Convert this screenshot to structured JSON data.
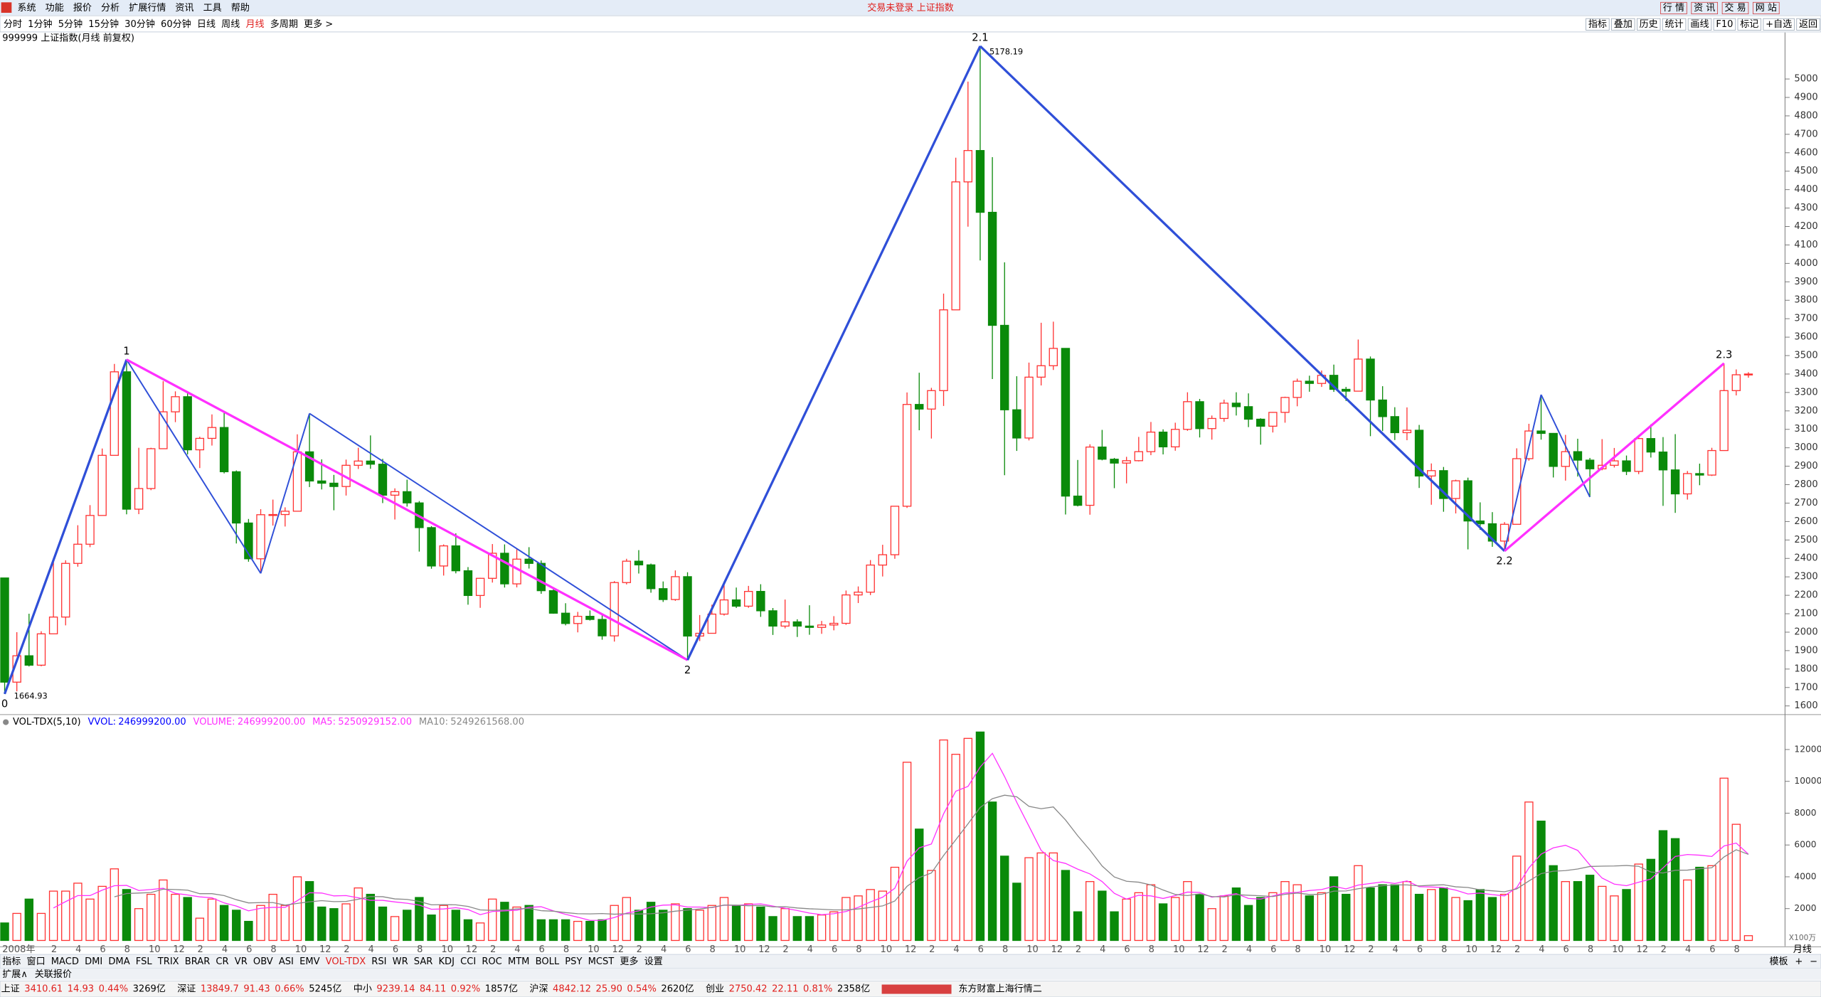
{
  "menu": [
    "系统",
    "功能",
    "报价",
    "分析",
    "扩展行情",
    "资讯",
    "工具",
    "帮助"
  ],
  "title": "交易未登录 上证指数",
  "top_buttons": [
    "行 情",
    "资 讯",
    "交 易",
    "网 站"
  ],
  "periods": [
    "分时",
    "1分钟",
    "5分钟",
    "15分钟",
    "30分钟",
    "60分钟",
    "日线",
    "周线",
    "月线",
    "多周期",
    "更多 >"
  ],
  "active_period_index": 8,
  "tools": [
    "指标",
    "叠加",
    "历史",
    "统计",
    "画线",
    "F10",
    "标记",
    "+自选",
    "返回"
  ],
  "chart_title": "999999 上证指数(月线 前复权)",
  "chart_data": {
    "type": "candlestick",
    "up_color": "#ff3232",
    "down_color": "#0a8a0a",
    "ylim": [
      1556,
      5252
    ],
    "yticks": [
      1600,
      1700,
      1800,
      1900,
      2000,
      2100,
      2200,
      2300,
      2400,
      2500,
      2600,
      2700,
      2800,
      2900,
      3000,
      3100,
      3200,
      3300,
      3400,
      3500,
      3600,
      3700,
      3800,
      3900,
      4000,
      4100,
      4200,
      4300,
      4400,
      4500,
      4600,
      4700,
      4800,
      4900,
      5000
    ],
    "categories": [
      "2008年",
      null,
      null,
      null,
      "2",
      null,
      "4",
      null,
      "6",
      null,
      "8",
      null,
      "10",
      null,
      "12",
      null,
      "2",
      null,
      "4",
      null,
      "6",
      null,
      "8",
      null,
      "10",
      null,
      "12",
      null,
      "2",
      null,
      "4",
      null,
      "6",
      null,
      "8",
      null,
      "10",
      null,
      "12",
      null,
      "2",
      null,
      "4",
      null,
      "6",
      null,
      "8",
      null,
      "10",
      null,
      "12",
      null,
      "2",
      null,
      "4",
      null,
      "6",
      null,
      "8",
      null,
      "10",
      null,
      "12",
      null,
      "2",
      null,
      "4",
      null,
      "6",
      null,
      "8",
      null,
      "10",
      null,
      "12",
      null,
      "2",
      null,
      "4",
      null,
      "6",
      null,
      "8",
      null,
      "10",
      null,
      "12",
      null,
      "2",
      null,
      "4",
      null,
      "6",
      null,
      "8",
      null,
      "10",
      null,
      "12",
      null,
      "2",
      null,
      "4",
      null,
      "6",
      null,
      "8",
      null,
      "10",
      null,
      "12",
      null,
      "2",
      null,
      "4",
      null,
      "6",
      null,
      "8",
      null,
      "10",
      null,
      "12",
      null,
      "2",
      null,
      "4",
      null,
      "6",
      null,
      "8",
      null,
      "10",
      null,
      "12",
      null,
      "2",
      null,
      "4",
      null,
      "6",
      null,
      "8",
      null
    ],
    "ohlc": [
      [
        2294,
        2294,
        1664.93,
        1729
      ],
      [
        1729,
        2000,
        1679,
        1872
      ],
      [
        1872,
        2100,
        1814,
        1821
      ],
      [
        1821,
        2005,
        1815,
        1991
      ],
      [
        1991,
        2403,
        1991,
        2082
      ],
      [
        2082,
        2390,
        2037,
        2373
      ],
      [
        2373,
        2580,
        2355,
        2477
      ],
      [
        2477,
        2689,
        2461,
        2633
      ],
      [
        2633,
        2996,
        2633,
        2959
      ],
      [
        2959,
        3455,
        2959,
        3412
      ],
      [
        3412,
        3478,
        2639,
        2667
      ],
      [
        2667,
        3000,
        2640,
        2779
      ],
      [
        2779,
        3000,
        2770,
        2995
      ],
      [
        2995,
        3361,
        2995,
        3195
      ],
      [
        3195,
        3306,
        3139,
        3277
      ],
      [
        3277,
        3307,
        2964,
        2989
      ],
      [
        2989,
        3060,
        2890,
        3051
      ],
      [
        3051,
        3181,
        3012,
        3110
      ],
      [
        3110,
        3190,
        2861,
        2870
      ],
      [
        2870,
        2877,
        2481,
        2592
      ],
      [
        2592,
        2614,
        2382,
        2398
      ],
      [
        2398,
        2667,
        2319,
        2637
      ],
      [
        2637,
        2719,
        2578,
        2638
      ],
      [
        2638,
        2677,
        2573,
        2656
      ],
      [
        2656,
        3073,
        2656,
        2978
      ],
      [
        2978,
        3186,
        2787,
        2820
      ],
      [
        2820,
        2937,
        2774,
        2808
      ],
      [
        2808,
        2853,
        2661,
        2790
      ],
      [
        2790,
        2936,
        2741,
        2905
      ],
      [
        2905,
        3000,
        2885,
        2928
      ],
      [
        2928,
        3067,
        2886,
        2911
      ],
      [
        2911,
        2940,
        2700,
        2743
      ],
      [
        2743,
        2780,
        2611,
        2762
      ],
      [
        2762,
        2827,
        2681,
        2701
      ],
      [
        2701,
        2711,
        2437,
        2567
      ],
      [
        2567,
        2575,
        2344,
        2359
      ],
      [
        2359,
        2476,
        2307,
        2468
      ],
      [
        2468,
        2536,
        2319,
        2333
      ],
      [
        2333,
        2353,
        2149,
        2199
      ],
      [
        2199,
        2295,
        2132,
        2292
      ],
      [
        2292,
        2478,
        2269,
        2428
      ],
      [
        2428,
        2476,
        2242,
        2262
      ],
      [
        2262,
        2454,
        2243,
        2396
      ],
      [
        2396,
        2461,
        2345,
        2373
      ],
      [
        2373,
        2389,
        2208,
        2225
      ],
      [
        2225,
        2239,
        2100,
        2103
      ],
      [
        2103,
        2157,
        2037,
        2047
      ],
      [
        2047,
        2110,
        1999,
        2086
      ],
      [
        2086,
        2118,
        2063,
        2069
      ],
      [
        2069,
        2092,
        1959,
        1980
      ],
      [
        1980,
        2277,
        1949,
        2269
      ],
      [
        2269,
        2398,
        2259,
        2385
      ],
      [
        2385,
        2445,
        2318,
        2365
      ],
      [
        2365,
        2372,
        2214,
        2236
      ],
      [
        2236,
        2275,
        2164,
        2177
      ],
      [
        2177,
        2335,
        2170,
        2301
      ],
      [
        2301,
        2325,
        1849,
        1979
      ],
      [
        1979,
        2093,
        1952,
        1994
      ],
      [
        1994,
        2149,
        1994,
        2098
      ],
      [
        2098,
        2270,
        2090,
        2175
      ],
      [
        2175,
        2242,
        2131,
        2141
      ],
      [
        2141,
        2251,
        2132,
        2221
      ],
      [
        2221,
        2260,
        2083,
        2116
      ],
      [
        2116,
        2131,
        1985,
        2033
      ],
      [
        2033,
        2177,
        2021,
        2056
      ],
      [
        2056,
        2070,
        1974,
        2033
      ],
      [
        2033,
        2146,
        1986,
        2026
      ],
      [
        2026,
        2061,
        1991,
        2039
      ],
      [
        2039,
        2087,
        2010,
        2048
      ],
      [
        2048,
        2226,
        2040,
        2202
      ],
      [
        2202,
        2248,
        2158,
        2217
      ],
      [
        2217,
        2391,
        2201,
        2364
      ],
      [
        2364,
        2474,
        2302,
        2420
      ],
      [
        2420,
        2684,
        2398,
        2683
      ],
      [
        2683,
        3300,
        2674,
        3235
      ],
      [
        3235,
        3407,
        3095,
        3210
      ],
      [
        3210,
        3325,
        3050,
        3310
      ],
      [
        3310,
        3836,
        3227,
        3748
      ],
      [
        3748,
        4573,
        3748,
        4442
      ],
      [
        4442,
        4986,
        4199,
        4612
      ],
      [
        4612,
        5178.19,
        4016,
        4277
      ],
      [
        4277,
        4576,
        3373,
        3664
      ],
      [
        3664,
        4006,
        2851,
        3206
      ],
      [
        3206,
        3388,
        2983,
        3053
      ],
      [
        3053,
        3462,
        3040,
        3383
      ],
      [
        3383,
        3678,
        3338,
        3445
      ],
      [
        3445,
        3684,
        3422,
        3539
      ],
      [
        3539,
        3539,
        2638,
        2738
      ],
      [
        2738,
        2934,
        2682,
        2688
      ],
      [
        2688,
        3019,
        2637,
        3004
      ],
      [
        3004,
        3097,
        2932,
        2938
      ],
      [
        2938,
        2945,
        2781,
        2917
      ],
      [
        2917,
        2951,
        2807,
        2930
      ],
      [
        2930,
        3059,
        2926,
        2979
      ],
      [
        2979,
        3140,
        2960,
        3085
      ],
      [
        3085,
        3100,
        2964,
        3005
      ],
      [
        3005,
        3136,
        2984,
        3100
      ],
      [
        3100,
        3301,
        3092,
        3250
      ],
      [
        3250,
        3265,
        3056,
        3104
      ],
      [
        3104,
        3175,
        3044,
        3159
      ],
      [
        3159,
        3261,
        3141,
        3242
      ],
      [
        3242,
        3301,
        3175,
        3223
      ],
      [
        3223,
        3295,
        3112,
        3155
      ],
      [
        3155,
        3160,
        3017,
        3117
      ],
      [
        3117,
        3194,
        3083,
        3192
      ],
      [
        3192,
        3277,
        3136,
        3273
      ],
      [
        3273,
        3375,
        3225,
        3361
      ],
      [
        3361,
        3391,
        3304,
        3349
      ],
      [
        3349,
        3419,
        3330,
        3393
      ],
      [
        3393,
        3451,
        3303,
        3317
      ],
      [
        3317,
        3330,
        3254,
        3307
      ],
      [
        3307,
        3587,
        3307,
        3481
      ],
      [
        3481,
        3495,
        3063,
        3259
      ],
      [
        3259,
        3334,
        3091,
        3169
      ],
      [
        3169,
        3220,
        3042,
        3082
      ],
      [
        3082,
        3219,
        3041,
        3095
      ],
      [
        3095,
        3124,
        2782,
        2847
      ],
      [
        2847,
        2915,
        2691,
        2876
      ],
      [
        2876,
        2896,
        2653,
        2725
      ],
      [
        2725,
        2827,
        2644,
        2821
      ],
      [
        2821,
        2838,
        2449,
        2603
      ],
      [
        2603,
        2704,
        2555,
        2588
      ],
      [
        2588,
        2651,
        2463,
        2494
      ],
      [
        2494,
        2597,
        2440,
        2585
      ],
      [
        2585,
        2997,
        2584,
        2941
      ],
      [
        2941,
        3130,
        2930,
        3091
      ],
      [
        3091,
        3288,
        3044,
        3078
      ],
      [
        3078,
        3080,
        2839,
        2899
      ],
      [
        2899,
        3070,
        2822,
        2979
      ],
      [
        2979,
        3049,
        2844,
        2933
      ],
      [
        2933,
        2945,
        2733,
        2886
      ],
      [
        2886,
        3047,
        2878,
        2905
      ],
      [
        2905,
        2999,
        2893,
        2929
      ],
      [
        2929,
        2958,
        2852,
        2872
      ],
      [
        2872,
        3065,
        2857,
        3050
      ],
      [
        3050,
        3127,
        2947,
        2977
      ],
      [
        2977,
        3058,
        2685,
        2880
      ],
      [
        2880,
        3074,
        2647,
        2750
      ],
      [
        2750,
        2874,
        2719,
        2860
      ],
      [
        2860,
        2914,
        2797,
        2852
      ],
      [
        2852,
        3000,
        2847,
        2985
      ],
      [
        2985,
        3458,
        2985,
        3310
      ],
      [
        3310,
        3425,
        3284,
        3396
      ],
      [
        3396,
        3410,
        3380,
        3400
      ]
    ],
    "waves": [
      {
        "label": "0",
        "index": 0,
        "at": "low"
      },
      {
        "label": "1",
        "index": 10,
        "at": "high"
      },
      {
        "label": "2",
        "index": 56,
        "at": "low"
      },
      {
        "label": "2.1",
        "index": 80,
        "at": "high"
      },
      {
        "label": "2.2",
        "index": 123,
        "at": "low"
      },
      {
        "label": "2.3",
        "index": 141,
        "at": "high"
      }
    ],
    "wave_colors": [
      "#2f4fd8",
      "#ff30ff",
      "#2f4fd8",
      "#2f4fd8",
      "#ff30ff"
    ],
    "extra_lines": [
      [
        10,
        "high",
        21,
        "low"
      ],
      [
        21,
        "low",
        25,
        "high"
      ],
      [
        25,
        "high",
        56,
        "low"
      ],
      [
        123,
        "low",
        126,
        "high"
      ],
      [
        126,
        "high",
        130,
        "low"
      ]
    ],
    "extra_color": "#2f4fd8",
    "period_label": "月线",
    "volume": {
      "type": "bar",
      "ylim": [
        0,
        13500
      ],
      "yticks": [
        2000,
        4000,
        6000,
        8000,
        10000,
        12000
      ],
      "unit": "X100万",
      "ma_colors": [
        "#ff30ff",
        "#888888"
      ],
      "values": [
        1100,
        1700,
        2600,
        1700,
        3100,
        3100,
        3600,
        2600,
        3400,
        4500,
        3200,
        2000,
        2900,
        3800,
        2900,
        2700,
        1400,
        2600,
        2200,
        1900,
        1200,
        2200,
        2900,
        2200,
        4000,
        3700,
        2100,
        2000,
        2300,
        3300,
        2900,
        2100,
        1500,
        1900,
        2700,
        1600,
        2200,
        1900,
        1300,
        1100,
        2600,
        2400,
        2100,
        2200,
        1300,
        1300,
        1300,
        1200,
        1200,
        1300,
        2200,
        2700,
        1900,
        2400,
        1900,
        2300,
        2000,
        1900,
        2200,
        2700,
        2200,
        2300,
        2100,
        1500,
        2000,
        1500,
        1500,
        1600,
        1800,
        2700,
        2800,
        3200,
        3100,
        4600,
        11200,
        7000,
        4400,
        12600,
        11700,
        12700,
        13100,
        8700,
        5300,
        3600,
        5200,
        5500,
        5500,
        4400,
        1800,
        3700,
        3100,
        1800,
        2600,
        3000,
        3500,
        2300,
        2700,
        3700,
        2900,
        2000,
        2800,
        3300,
        2200,
        2700,
        3000,
        3700,
        3500,
        2800,
        3000,
        4000,
        2900,
        4700,
        3300,
        3500,
        3500,
        3700,
        2900,
        3200,
        3300,
        2700,
        2500,
        3200,
        2700,
        2900,
        5300,
        8700,
        7500,
        4700,
        3700,
        3700,
        4100,
        3400,
        2800,
        3200,
        4800,
        5100,
        6900,
        6400,
        3800,
        4600,
        4700,
        10200,
        7300,
        300
      ],
      "header": [
        {
          "name": "VOL-TDX(5,10)",
          "color": "#000000"
        },
        {
          "name": "VVOL:",
          "value": {
            "value": 246999200,
            "label": "246999200.00"
          },
          "color": "#0000ff"
        },
        {
          "name": "VOLUME:",
          "value": {
            "value": 246999200,
            "label": "246999200.00"
          },
          "color": "#ff30ff"
        },
        {
          "name": "MA5:",
          "value": {
            "value": 5250929152,
            "label": "5250929152.00"
          },
          "color": "#ff30ff"
        },
        {
          "name": "MA10:",
          "value": {
            "value": 5249261568,
            "label": "5249261568.00"
          },
          "color": "#888888"
        }
      ]
    }
  },
  "indicator_tabs": [
    "指标",
    "窗口",
    "MACD",
    "DMI",
    "DMA",
    "FSL",
    "TRIX",
    "BRAR",
    "CR",
    "VR",
    "OBV",
    "ASI",
    "EMV",
    "VOL-TDX",
    "RSI",
    "WR",
    "SAR",
    "KDJ",
    "CCI",
    "ROC",
    "MTM",
    "BOLL",
    "PSY",
    "MCST",
    "更多",
    "设置"
  ],
  "active_indicator_index": 13,
  "tab_right": [
    "模板",
    "+",
    "−"
  ],
  "ext_tabs": [
    "扩展∧",
    "关联报价"
  ],
  "status": [
    {
      "name": "上证",
      "price": 3410.61,
      "change": 14.93,
      "pct": {
        "value": 0.44,
        "label": "0.44%"
      },
      "amount": {
        "value": 3269,
        "label": "3269亿"
      }
    },
    {
      "name": "深证",
      "price": 13849.7,
      "change": 91.43,
      "pct": {
        "value": 0.66,
        "label": "0.66%"
      },
      "amount": {
        "value": 5245,
        "label": "5245亿"
      }
    },
    {
      "name": "中小",
      "price": 9239.14,
      "change": 84.11,
      "pct": {
        "value": 0.92,
        "label": "0.92%"
      },
      "amount": {
        "value": 1857,
        "label": "1857亿"
      }
    },
    {
      "name": "沪深",
      "price": 4842.12,
      "change": {
        "value": 25.9,
        "label": "25.90"
      },
      "pct": {
        "value": 0.54,
        "label": "0.54%"
      },
      "amount": {
        "value": 2620,
        "label": "2620亿"
      }
    },
    {
      "name": "创业",
      "price": 2750.42,
      "change": 22.11,
      "pct": {
        "value": 0.81,
        "label": "0.81%"
      },
      "amount": {
        "value": 2358,
        "label": "2358亿"
      }
    }
  ],
  "status_note": "东方财富上海行情二"
}
